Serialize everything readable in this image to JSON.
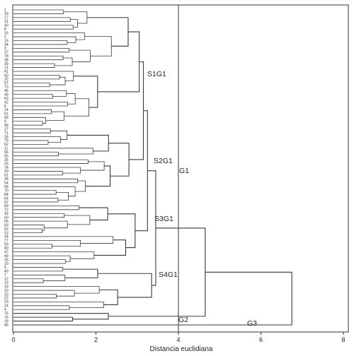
{
  "chart_data": {
    "type": "dendrogram",
    "xlabel": "Distancia euclidiana",
    "xlim": [
      0,
      8
    ],
    "x_ticks": [
      "0",
      "2",
      "4",
      "6",
      "8"
    ],
    "cut_line_x": 4.0,
    "leaves": [
      "1",
      "33",
      "17",
      "31",
      "40",
      "8",
      "16",
      "2",
      "15",
      "34",
      "3",
      "37",
      "78",
      "38",
      "39",
      "21",
      "41",
      "50",
      "32",
      "57",
      "73",
      "46",
      "48",
      "63",
      "42",
      "6",
      "14",
      "61",
      "56",
      "9",
      "68",
      "27",
      "71",
      "26",
      "79",
      "62",
      "11",
      "66",
      "55",
      "35",
      "25",
      "74",
      "30",
      "51",
      "36",
      "54",
      "58",
      "70",
      "84",
      "64",
      "67",
      "69",
      "72",
      "43",
      "60",
      "65",
      "83",
      "52",
      "53",
      "44",
      "77",
      "59",
      "80",
      "47",
      "49",
      "28",
      "10",
      "5",
      "43",
      "7",
      "12",
      "13",
      "18",
      "19",
      "20",
      "22",
      "23",
      "24",
      "4",
      "75",
      "76",
      "29",
      "45"
    ],
    "groups": [
      {
        "label": "S1G1"
      },
      {
        "label": "S2G1"
      },
      {
        "label": "S3G1"
      },
      {
        "label": "S4G1"
      },
      {
        "label": "G1"
      },
      {
        "label": "G2"
      },
      {
        "label": "G3"
      }
    ]
  }
}
